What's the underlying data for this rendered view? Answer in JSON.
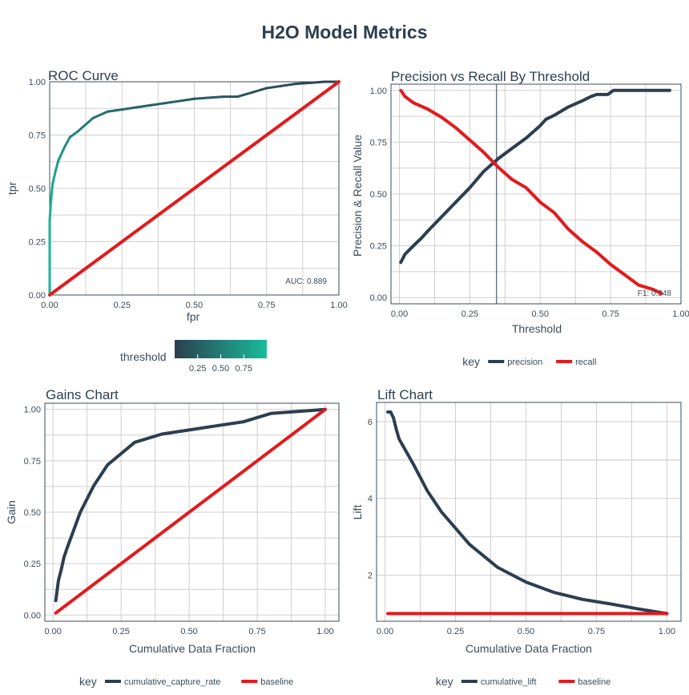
{
  "figure": {
    "title": "H2O Model Metrics",
    "colors": {
      "dark": "#2c3e50",
      "red": "#e31a1c",
      "teal": "#18bc9c",
      "grid": "#cfcfcf",
      "text": "#3d4b5a"
    }
  },
  "chart_data": [
    {
      "id": "roc",
      "type": "line",
      "title": "ROC Curve",
      "xlabel": "fpr",
      "ylabel": "tpr",
      "xlim": [
        0,
        1
      ],
      "ylim": [
        0,
        1
      ],
      "x_ticks": [
        "0.00",
        "0.25",
        "0.50",
        "0.75",
        "1.00"
      ],
      "y_ticks": [
        "0.00",
        "0.25",
        "0.50",
        "0.75",
        "1.00"
      ],
      "grid": true,
      "annotation": "AUC: 0.889",
      "legend": {
        "title": "threshold",
        "type": "colorbar",
        "ticks": [
          "0.25",
          "0.50",
          "0.75"
        ],
        "position": "bottom",
        "low_color": "#2c3e50",
        "high_color": "#18bc9c"
      },
      "series": [
        {
          "name": "roc",
          "color_by": "threshold",
          "x": [
            0,
            0,
            0.005,
            0.01,
            0.02,
            0.03,
            0.05,
            0.07,
            0.1,
            0.15,
            0.2,
            0.25,
            0.3,
            0.35,
            0.45,
            0.5,
            0.6,
            0.65,
            0.7,
            0.75,
            0.8,
            0.85,
            0.9,
            0.95,
            1.0
          ],
          "y": [
            0,
            0.35,
            0.45,
            0.52,
            0.58,
            0.63,
            0.69,
            0.74,
            0.77,
            0.83,
            0.86,
            0.87,
            0.88,
            0.89,
            0.91,
            0.92,
            0.93,
            0.93,
            0.95,
            0.97,
            0.98,
            0.99,
            0.995,
            1.0,
            1.0
          ],
          "threshold": [
            0.95,
            0.9,
            0.85,
            0.8,
            0.75,
            0.7,
            0.62,
            0.55,
            0.5,
            0.42,
            0.36,
            0.32,
            0.29,
            0.27,
            0.24,
            0.22,
            0.19,
            0.17,
            0.15,
            0.13,
            0.1,
            0.08,
            0.06,
            0.03,
            0.01
          ]
        },
        {
          "name": "baseline",
          "color": "#e31a1c",
          "x": [
            0,
            1
          ],
          "y": [
            0,
            1
          ]
        }
      ]
    },
    {
      "id": "precision-recall",
      "type": "line",
      "title": "Precision vs Recall By Threshold",
      "xlabel": "Threshold",
      "ylabel": "Precision & Recall Value",
      "xlim": [
        -0.03,
        1.0
      ],
      "ylim": [
        -0.03,
        1.03
      ],
      "x_ticks": [
        "0.00",
        "0.25",
        "0.50",
        "0.75",
        "1.00"
      ],
      "y_ticks": [
        "0.00",
        "0.25",
        "0.50",
        "0.75",
        "1.00"
      ],
      "grid": true,
      "vline": 0.345,
      "annotation": "F1: 0.348",
      "legend": {
        "title": "key",
        "position": "bottom"
      },
      "series": [
        {
          "name": "precision",
          "color": "#2c3e50",
          "x": [
            0.005,
            0.02,
            0.05,
            0.08,
            0.1,
            0.15,
            0.2,
            0.25,
            0.3,
            0.35,
            0.4,
            0.45,
            0.5,
            0.52,
            0.55,
            0.6,
            0.65,
            0.68,
            0.7,
            0.72,
            0.74,
            0.76,
            0.8,
            0.9,
            0.96
          ],
          "y": [
            0.17,
            0.21,
            0.25,
            0.29,
            0.32,
            0.39,
            0.46,
            0.53,
            0.61,
            0.67,
            0.72,
            0.77,
            0.83,
            0.86,
            0.88,
            0.92,
            0.95,
            0.97,
            0.98,
            0.98,
            0.98,
            1.0,
            1.0,
            1.0,
            1.0
          ]
        },
        {
          "name": "recall",
          "color": "#e31a1c",
          "x": [
            0.005,
            0.02,
            0.05,
            0.1,
            0.15,
            0.2,
            0.25,
            0.3,
            0.35,
            0.4,
            0.45,
            0.5,
            0.55,
            0.6,
            0.65,
            0.7,
            0.75,
            0.8,
            0.85,
            0.9,
            0.93
          ],
          "y": [
            1.0,
            0.97,
            0.94,
            0.91,
            0.87,
            0.82,
            0.76,
            0.7,
            0.63,
            0.57,
            0.53,
            0.46,
            0.41,
            0.33,
            0.27,
            0.22,
            0.16,
            0.11,
            0.06,
            0.04,
            0.02
          ]
        }
      ]
    },
    {
      "id": "gains",
      "type": "line",
      "title": "Gains Chart",
      "xlabel": "Cumulative Data Fraction",
      "ylabel": "Gain",
      "xlim": [
        -0.03,
        1.05
      ],
      "ylim": [
        -0.03,
        1.03
      ],
      "x_ticks": [
        "0.00",
        "0.25",
        "0.50",
        "0.75",
        "1.00"
      ],
      "y_ticks": [
        "0.00",
        "0.25",
        "0.50",
        "0.75",
        "1.00"
      ],
      "grid": true,
      "legend": {
        "title": "key",
        "position": "bottom"
      },
      "series": [
        {
          "name": "cumulative_capture_rate",
          "color": "#2c3e50",
          "x": [
            0.01,
            0.02,
            0.03,
            0.04,
            0.05,
            0.1,
            0.15,
            0.2,
            0.3,
            0.4,
            0.5,
            0.6,
            0.7,
            0.8,
            0.9,
            1.0
          ],
          "y": [
            0.07,
            0.17,
            0.22,
            0.28,
            0.32,
            0.5,
            0.63,
            0.73,
            0.84,
            0.88,
            0.9,
            0.92,
            0.94,
            0.98,
            0.99,
            1.0
          ]
        },
        {
          "name": "baseline",
          "color": "#e31a1c",
          "x": [
            0.01,
            1.0
          ],
          "y": [
            0.01,
            1.0
          ]
        }
      ]
    },
    {
      "id": "lift",
      "type": "line",
      "title": "Lift Chart",
      "xlabel": "Cumulative Data Fraction",
      "ylabel": "Lift",
      "xlim": [
        -0.03,
        1.05
      ],
      "ylim": [
        0.8,
        6.5
      ],
      "x_ticks": [
        "0.00",
        "0.25",
        "0.50",
        "0.75",
        "1.00"
      ],
      "y_ticks": [
        "2",
        "4",
        "6"
      ],
      "grid": true,
      "legend": {
        "title": "key",
        "position": "bottom"
      },
      "series": [
        {
          "name": "cumulative_lift",
          "color": "#2c3e50",
          "x": [
            0.01,
            0.02,
            0.03,
            0.04,
            0.05,
            0.1,
            0.15,
            0.2,
            0.3,
            0.4,
            0.5,
            0.6,
            0.7,
            0.8,
            0.9,
            1.0
          ],
          "y": [
            6.25,
            6.25,
            6.1,
            5.8,
            5.55,
            4.9,
            4.2,
            3.65,
            2.8,
            2.2,
            1.82,
            1.55,
            1.37,
            1.25,
            1.12,
            1.0
          ]
        },
        {
          "name": "baseline",
          "color": "#e31a1c",
          "x": [
            0.01,
            1.0
          ],
          "y": [
            1.0,
            1.0
          ]
        }
      ]
    }
  ]
}
